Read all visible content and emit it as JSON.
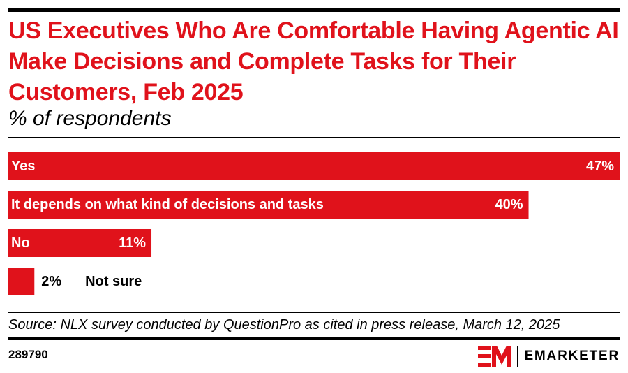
{
  "header": {
    "title": "US Executives Who Are Comfortable Having Agentic AI Make Decisions and Complete Tasks for Their Customers, Feb 2025",
    "subtitle": "% of respondents"
  },
  "chart_data": {
    "type": "bar",
    "orientation": "horizontal",
    "categories": [
      "Yes",
      "It depends on what kind of decisions and tasks",
      "No",
      "Not sure"
    ],
    "values": [
      47,
      40,
      11,
      2
    ],
    "value_labels": [
      "47%",
      "40%",
      "11%",
      "2%"
    ],
    "xlim": [
      0,
      47
    ],
    "grid": false,
    "legend": "none",
    "bar_color": "#e0121b"
  },
  "footer": {
    "source": "Source: NLX survey conducted by QuestionPro as cited in press release, March 12, 2025",
    "chart_id": "289790",
    "brand": "EMARKETER",
    "brand_color": "#e0121b",
    "logo_icon": "em-logo-icon"
  }
}
